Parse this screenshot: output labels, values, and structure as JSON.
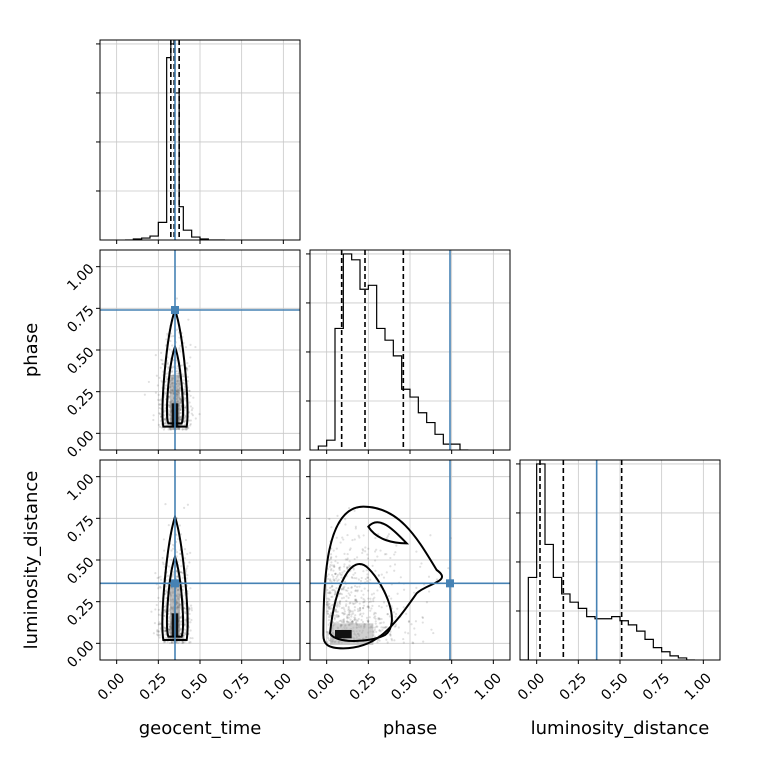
{
  "chart_data": {
    "type": "corner",
    "parameters": [
      "geocent_time",
      "phase",
      "luminosity_distance"
    ],
    "axis_labels": {
      "x": [
        "geocent_time",
        "phase",
        "luminosity_distance"
      ],
      "y": [
        "phase",
        "luminosity_distance"
      ]
    },
    "tick_values": [
      0.0,
      0.25,
      0.5,
      0.75,
      1.0
    ],
    "tick_labels": [
      "0.00",
      "0.25",
      "0.50",
      "0.75",
      "1.00"
    ],
    "xlim": [
      -0.1,
      1.1
    ],
    "grid": true,
    "truth_color": "#4682b4",
    "truths": {
      "geocent_time": 0.35,
      "phase": 0.74,
      "luminosity_distance": 0.36
    },
    "quantiles": {
      "geocent_time": [
        0.325,
        0.345,
        0.375
      ],
      "phase": [
        0.09,
        0.23,
        0.46
      ],
      "luminosity_distance": [
        0.02,
        0.16,
        0.51
      ]
    },
    "histograms": {
      "geocent_time": {
        "bin_edges": [
          0.05,
          0.1,
          0.15,
          0.2,
          0.25,
          0.3,
          0.325,
          0.35,
          0.375,
          0.4,
          0.45,
          0.5,
          0.55,
          0.6,
          0.65
        ],
        "counts": [
          0,
          0.005,
          0.01,
          0.02,
          0.09,
          0.93,
          1.0,
          0.75,
          0.17,
          0.05,
          0.015,
          0.005,
          0,
          0
        ]
      },
      "phase": {
        "bin_edges": [
          -0.05,
          0.0,
          0.05,
          0.1,
          0.15,
          0.2,
          0.25,
          0.3,
          0.35,
          0.4,
          0.45,
          0.5,
          0.55,
          0.6,
          0.65,
          0.7,
          0.75,
          0.8,
          0.85
        ],
        "counts": [
          0.02,
          0.05,
          0.62,
          1.0,
          0.97,
          0.82,
          0.84,
          0.62,
          0.56,
          0.48,
          0.31,
          0.27,
          0.19,
          0.14,
          0.08,
          0.03,
          0.03,
          0
        ]
      },
      "luminosity_distance": {
        "bin_edges": [
          -0.1,
          -0.05,
          0.0,
          0.05,
          0.1,
          0.15,
          0.2,
          0.25,
          0.3,
          0.35,
          0.4,
          0.45,
          0.5,
          0.55,
          0.6,
          0.65,
          0.7,
          0.75,
          0.8,
          0.85,
          0.9,
          0.95
        ],
        "counts": [
          0,
          0.4,
          0.95,
          0.56,
          0.4,
          0.32,
          0.28,
          0.25,
          0.21,
          0.2,
          0.2,
          0.21,
          0.19,
          0.17,
          0.14,
          0.1,
          0.06,
          0.04,
          0.02,
          0.01,
          0
        ]
      }
    }
  }
}
